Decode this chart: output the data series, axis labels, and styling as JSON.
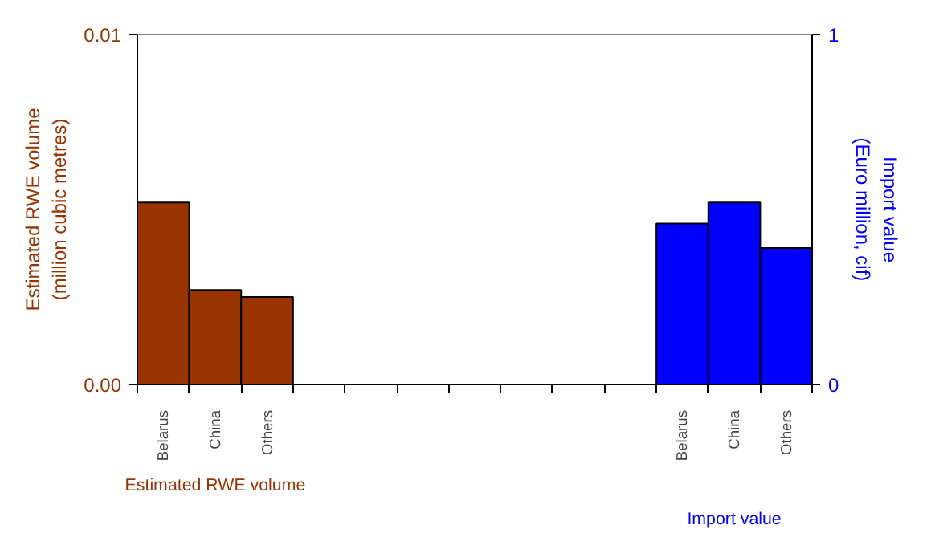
{
  "chart_data": {
    "type": "bar",
    "categories": [
      "Belarus",
      "China",
      "Others",
      null,
      null,
      null,
      null,
      null,
      null,
      null,
      "Belarus",
      "China",
      "Others"
    ],
    "ylabel": "Estimated RWE volume\n(million cubic metres)",
    "y2label": "Import value\n(Euro million, cif)",
    "ylim": [
      0,
      0.01
    ],
    "yticks": [
      {
        "value": 0,
        "label": "0.00"
      },
      0.01
    ],
    "y2lim": [
      0,
      1
    ],
    "y2ticks": [
      0,
      1
    ],
    "series": [
      {
        "name": "Estimated RWE volume",
        "color": "#993300",
        "values": [
          0.0052,
          0.0027,
          0.0025,
          null,
          null,
          null,
          null,
          null,
          null,
          null,
          null,
          null,
          null
        ]
      },
      {
        "name": "Import value",
        "color": "#0000ff",
        "axis": "y2",
        "values": [
          null,
          null,
          null,
          null,
          null,
          null,
          null,
          null,
          null,
          null,
          0.46,
          0.52,
          0.39
        ]
      }
    ],
    "grid": false
  }
}
